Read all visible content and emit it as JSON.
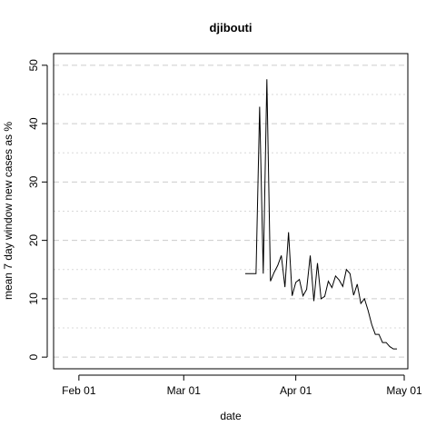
{
  "chart_data": {
    "type": "line",
    "title": "djibouti",
    "xlabel": "date",
    "ylabel": "mean  7  day window new cases as %",
    "x_ticks": [
      "2020-02-01",
      "2020-03-01",
      "2020-04-01",
      "2020-05-01"
    ],
    "x_tick_labels": [
      "Feb 01",
      "Mar 01",
      "Apr 01",
      "May 01"
    ],
    "xlim": [
      "2020-01-25",
      "2020-05-02"
    ],
    "ylim": [
      -2,
      52
    ],
    "y_ticks": [
      0,
      10,
      20,
      30,
      40,
      50
    ],
    "grid": {
      "y_major": true,
      "y_minor": true,
      "x": false
    },
    "line_color": "#000000",
    "series": [
      {
        "x": [
          "2020-03-18",
          "2020-03-19",
          "2020-03-20",
          "2020-03-21",
          "2020-03-22",
          "2020-03-23",
          "2020-03-24",
          "2020-03-25",
          "2020-03-26",
          "2020-03-27",
          "2020-03-28",
          "2020-03-29",
          "2020-03-30",
          "2020-03-31",
          "2020-04-01",
          "2020-04-02",
          "2020-04-03",
          "2020-04-04",
          "2020-04-05",
          "2020-04-06",
          "2020-04-07",
          "2020-04-08",
          "2020-04-09",
          "2020-04-10",
          "2020-04-11",
          "2020-04-12",
          "2020-04-13",
          "2020-04-14",
          "2020-04-15",
          "2020-04-16",
          "2020-04-17",
          "2020-04-18",
          "2020-04-19",
          "2020-04-20",
          "2020-04-21",
          "2020-04-22",
          "2020-04-23",
          "2020-04-24",
          "2020-04-25",
          "2020-04-26",
          "2020-04-27",
          "2020-04-28",
          "2020-04-29"
        ],
        "values": [
          14.3,
          14.3,
          14.3,
          14.3,
          42.9,
          14.3,
          47.6,
          13.0,
          14.5,
          15.7,
          17.4,
          12.0,
          21.4,
          10.5,
          12.8,
          13.3,
          10.5,
          11.6,
          17.4,
          9.6,
          16.1,
          10.0,
          10.4,
          13.0,
          11.9,
          13.9,
          13.2,
          12.1,
          15.0,
          14.3,
          10.6,
          12.5,
          9.2,
          10.0,
          8.0,
          5.6,
          3.9,
          3.9,
          2.5,
          2.5,
          1.8,
          1.4,
          1.4
        ]
      }
    ]
  }
}
